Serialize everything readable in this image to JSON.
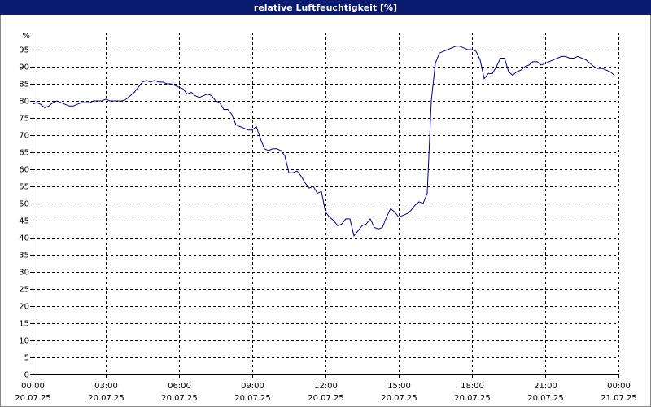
{
  "chart_data": {
    "type": "line",
    "title": "relative Luftfeuchtigkeit [%]",
    "ylabel": "%",
    "x": [
      0,
      10,
      20,
      30,
      40,
      50,
      60,
      70,
      80,
      90,
      100,
      110,
      120,
      130,
      140,
      150,
      160,
      170,
      180,
      190,
      200,
      210,
      220,
      230,
      240,
      250,
      260,
      270,
      280,
      290,
      300,
      310,
      320,
      330,
      340,
      350,
      360,
      370,
      380,
      390,
      400,
      410,
      420,
      430,
      440,
      450,
      460,
      470,
      480,
      490,
      500,
      510,
      520,
      530,
      540,
      550,
      560,
      570,
      580,
      590,
      600,
      610,
      620,
      630,
      640,
      650,
      660,
      670,
      680,
      690,
      700,
      710,
      720,
      730,
      740,
      750,
      760,
      770,
      780,
      790,
      800,
      810,
      820,
      830,
      840,
      850,
      860,
      870,
      880,
      890,
      900,
      910,
      920,
      930,
      940,
      950,
      960,
      970,
      980,
      990,
      1000,
      1010,
      1020,
      1030,
      1040,
      1050,
      1060,
      1070,
      1080,
      1090,
      1100,
      1110,
      1120,
      1130,
      1140,
      1150,
      1160,
      1170,
      1180,
      1190,
      1200,
      1210,
      1220,
      1230,
      1240,
      1250,
      1260,
      1270,
      1280,
      1290,
      1300,
      1310,
      1320,
      1330,
      1340,
      1350,
      1360,
      1370,
      1380,
      1390,
      1400,
      1410,
      1420,
      1430
    ],
    "values": [
      79,
      79.5,
      79,
      78,
      78.5,
      79.5,
      80,
      79.5,
      79,
      78.5,
      78.5,
      79,
      79.5,
      79.5,
      79.5,
      80,
      80,
      80,
      80.5,
      80,
      80,
      80,
      80,
      80.5,
      81.5,
      82.5,
      84,
      85.5,
      86,
      85.5,
      86,
      85.5,
      85.5,
      85,
      85,
      84.5,
      84,
      83.5,
      82,
      82.5,
      81.5,
      81,
      81.5,
      82,
      81.5,
      80,
      79.5,
      77.5,
      77.5,
      76,
      73,
      72.5,
      72,
      71.5,
      71.5,
      72.5,
      69,
      66,
      65.5,
      66,
      66,
      65.5,
      64,
      59,
      59,
      59.5,
      58,
      56,
      54.5,
      55,
      53,
      53.5,
      47.5,
      46,
      45,
      43.5,
      44,
      45.5,
      45.5,
      40.5,
      42,
      43.5,
      44,
      45.5,
      43,
      42.5,
      43,
      46,
      48.5,
      47.5,
      46,
      46.5,
      47,
      48,
      49.5,
      50.5,
      50,
      53,
      80,
      91,
      94,
      94.5,
      95,
      95.5,
      96,
      96,
      95.5,
      95,
      95,
      94.5,
      92,
      86.5,
      88,
      88,
      90,
      92.5,
      92.5,
      88.5,
      87.5,
      88.5,
      89,
      90,
      90.5,
      91.5,
      91.5,
      90.5,
      91,
      91.5,
      92,
      92.5,
      93,
      93,
      92.5,
      92.5,
      93,
      92.5,
      92,
      91,
      90,
      89.5,
      89.5,
      89,
      88.5,
      87.5
    ],
    "color": "#00008b",
    "xlim": [
      0,
      1440
    ],
    "xticks": [
      {
        "value": 0,
        "label": "00:00"
      },
      {
        "value": 180,
        "label": "03:00"
      },
      {
        "value": 360,
        "label": "06:00"
      },
      {
        "value": 540,
        "label": "09:00"
      },
      {
        "value": 720,
        "label": "12:00"
      },
      {
        "value": 900,
        "label": "15:00"
      },
      {
        "value": 1080,
        "label": "18:00"
      },
      {
        "value": 1260,
        "label": "21:00"
      },
      {
        "value": 1440,
        "label": "00:00"
      }
    ],
    "xtick_dates": [
      "20.07.25",
      "20.07.25",
      "20.07.25",
      "20.07.25",
      "20.07.25",
      "20.07.25",
      "20.07.25",
      "20.07.25",
      "21.07.25"
    ],
    "ylim": [
      0,
      100
    ],
    "yticks": [
      0,
      5,
      10,
      15,
      20,
      25,
      30,
      35,
      40,
      45,
      50,
      55,
      60,
      65,
      70,
      75,
      80,
      85,
      90,
      95
    ],
    "grid": true
  }
}
